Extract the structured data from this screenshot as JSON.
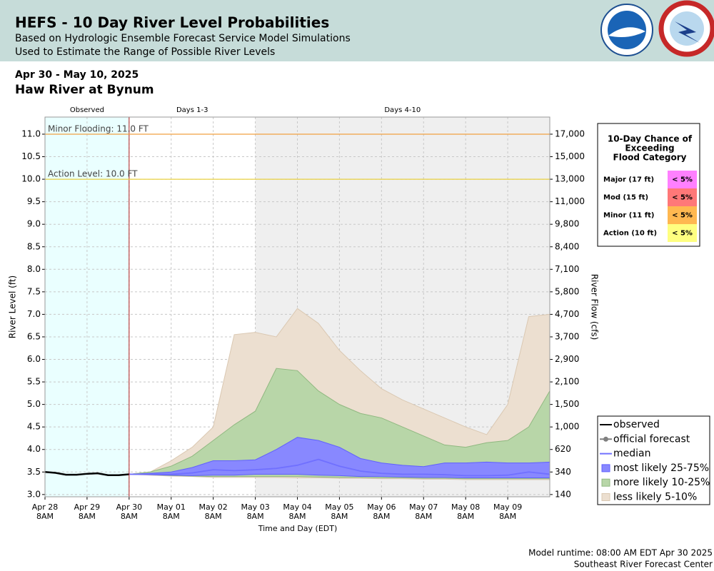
{
  "header": {
    "title": "HEFS - 10 Day River Level Probabilities",
    "subtitles": [
      "Based on Hydrologic Ensemble Forecast Service Model Simulations",
      "Used to Estimate the Range of Possible River Levels"
    ]
  },
  "date_range": "Apr 30 - May 10, 2025",
  "location": "Haw River at Bynum",
  "chart_data": {
    "type": "band",
    "xlabel": "Time and Day (EDT)",
    "ylabel": "River Level (ft)",
    "y2label": "River Flow (cfs)",
    "xlim": [
      "Apr 28 08:00",
      "May 10 08:00"
    ],
    "ylim": [
      2.95,
      11.38
    ],
    "xticks": [
      {
        "value": "Apr 28 08:00",
        "label": [
          "Apr 28",
          "8AM"
        ]
      },
      {
        "value": "Apr 29 08:00",
        "label": [
          "Apr 29",
          "8AM"
        ]
      },
      {
        "value": "Apr 30 08:00",
        "label": [
          "Apr 30",
          "8AM"
        ]
      },
      {
        "value": "May 01 08:00",
        "label": [
          "May 01",
          "8AM"
        ]
      },
      {
        "value": "May 02 08:00",
        "label": [
          "May 02",
          "8AM"
        ]
      },
      {
        "value": "May 03 08:00",
        "label": [
          "May 03",
          "8AM"
        ]
      },
      {
        "value": "May 04 08:00",
        "label": [
          "May 04",
          "8AM"
        ]
      },
      {
        "value": "May 05 08:00",
        "label": [
          "May 05",
          "8AM"
        ]
      },
      {
        "value": "May 06 08:00",
        "label": [
          "May 06",
          "8AM"
        ]
      },
      {
        "value": "May 07 08:00",
        "label": [
          "May 07",
          "8AM"
        ]
      },
      {
        "value": "May 08 08:00",
        "label": [
          "May 08",
          "8AM"
        ]
      },
      {
        "value": "May 09 08:00",
        "label": [
          "May 09",
          "8AM"
        ]
      }
    ],
    "yticks": [
      {
        "value": 3,
        "label": "3.0"
      },
      3.5,
      {
        "value": 4,
        "label": "4.0"
      },
      4.5,
      {
        "value": 5,
        "label": "5.0"
      },
      5.5,
      {
        "value": 6,
        "label": "6.0"
      },
      6.5,
      {
        "value": 7,
        "label": "7.0"
      },
      7.5,
      {
        "value": 8,
        "label": "8.0"
      },
      8.5,
      {
        "value": 9,
        "label": "9.0"
      },
      9.5,
      {
        "value": 10,
        "label": "10.0"
      },
      10.5,
      {
        "value": 11,
        "label": "11.0"
      }
    ],
    "y2ticks": [
      140,
      340,
      620,
      {
        "value": 1000,
        "label": "1,000"
      },
      {
        "value": 1500,
        "label": "1,500"
      },
      {
        "value": 2100,
        "label": "2,100"
      },
      {
        "value": 2900,
        "label": "2,900"
      },
      {
        "value": 3700,
        "label": "3,700"
      },
      {
        "value": 4700,
        "label": "4,700"
      },
      {
        "value": 5800,
        "label": "5,800"
      },
      {
        "value": 7100,
        "label": "7,100"
      },
      {
        "value": 8400,
        "label": "8,400"
      },
      {
        "value": 9800,
        "label": "9,800"
      },
      {
        "value": 11000,
        "label": "11,000"
      },
      {
        "value": 13000,
        "label": "13,000"
      },
      {
        "value": 15000,
        "label": "15,000"
      },
      {
        "value": 17000,
        "label": "17,000"
      }
    ],
    "grid": true,
    "regions": [
      {
        "label": "Observed",
        "start": "Apr 28 08:00",
        "end": "Apr 30 08:00",
        "color": "#eaffff"
      },
      {
        "label": "Days 1-3",
        "start": "Apr 30 08:00",
        "end": "May 03 08:00",
        "color": "#ffffff"
      },
      {
        "label": "Days 4-10",
        "start": "May 03 08:00",
        "end": "May 10 08:00",
        "color": "#efefef"
      }
    ],
    "now": {
      "x": "Apr 30 08:00",
      "color": "#b02020"
    },
    "thresholds": [
      {
        "label": "Minor Flooding: 11.0 FT",
        "value": 11,
        "color": "#f0a040"
      },
      {
        "label": "Action Level: 10.0 FT",
        "value": 10,
        "color": "#e8d040"
      }
    ],
    "forecast_x": [
      "Apr 30 08:00",
      "Apr 30 20:00",
      "May 01 08:00",
      "May 01 20:00",
      "May 02 08:00",
      "May 02 20:00",
      "May 03 08:00",
      "May 03 20:00",
      "May 04 08:00",
      "May 04 20:00",
      "May 05 08:00",
      "May 05 20:00",
      "May 06 08:00",
      "May 06 20:00",
      "May 07 08:00",
      "May 07 20:00",
      "May 08 08:00",
      "May 08 20:00",
      "May 09 08:00",
      "May 09 20:00",
      "May 10 08:00"
    ],
    "series": [
      {
        "name": "observed",
        "kind": "line",
        "color": "#000000",
        "x": [
          "Apr 28 08:00",
          "Apr 28 14:00",
          "Apr 28 20:00",
          "Apr 29 02:00",
          "Apr 29 08:00",
          "Apr 29 14:00",
          "Apr 29 20:00",
          "Apr 30 02:00",
          "Apr 30 08:00"
        ],
        "values": [
          3.5,
          3.48,
          3.44,
          3.44,
          3.46,
          3.47,
          3.43,
          3.43,
          3.45
        ]
      },
      {
        "name": "official forecast",
        "kind": "dotline",
        "color": "#808080"
      },
      {
        "name": "median",
        "kind": "line",
        "color": "#7070ff",
        "values": [
          3.45,
          3.45,
          3.45,
          3.48,
          3.55,
          3.53,
          3.55,
          3.58,
          3.65,
          3.78,
          3.63,
          3.52,
          3.47,
          3.45,
          3.45,
          3.44,
          3.42,
          3.42,
          3.43,
          3.5,
          3.45
        ]
      },
      {
        "name": "most likely 25-75%",
        "kind": "band",
        "color": "#8888ff",
        "edge": "#6060ff",
        "upper": [
          3.45,
          3.47,
          3.5,
          3.6,
          3.75,
          3.75,
          3.77,
          4.0,
          4.27,
          4.2,
          4.05,
          3.8,
          3.7,
          3.65,
          3.62,
          3.7,
          3.7,
          3.72,
          3.7,
          3.7,
          3.72
        ],
        "lower": [
          3.45,
          3.44,
          3.43,
          3.42,
          3.43,
          3.43,
          3.45,
          3.45,
          3.45,
          3.43,
          3.42,
          3.4,
          3.4,
          3.39,
          3.38,
          3.38,
          3.37,
          3.37,
          3.37,
          3.37,
          3.37
        ]
      },
      {
        "name": "more likely 10-25%",
        "kind": "band",
        "color": "#b8d6a8",
        "edge": "#90b880",
        "upper": [
          3.45,
          3.5,
          3.63,
          3.85,
          4.2,
          4.55,
          4.85,
          5.8,
          5.75,
          5.3,
          5.0,
          4.8,
          4.7,
          4.5,
          4.3,
          4.1,
          4.05,
          4.15,
          4.2,
          4.5,
          5.3
        ],
        "lower": [
          3.45,
          3.44,
          3.42,
          3.41,
          3.4,
          3.4,
          3.4,
          3.4,
          3.4,
          3.39,
          3.38,
          3.38,
          3.37,
          3.37,
          3.36,
          3.36,
          3.35,
          3.35,
          3.35,
          3.35,
          3.35
        ]
      },
      {
        "name": "less likely 5-10%",
        "kind": "band",
        "color": "#ecdfd0",
        "edge": "#dac8b2",
        "upper": [
          3.45,
          3.5,
          3.75,
          4.05,
          4.5,
          6.55,
          6.6,
          6.5,
          7.13,
          6.8,
          6.2,
          5.75,
          5.35,
          5.1,
          4.9,
          4.7,
          4.5,
          4.33,
          5.0,
          6.95,
          7.0
        ],
        "lower": [
          3.45,
          3.43,
          3.41,
          3.4,
          3.38,
          3.38,
          3.38,
          3.38,
          3.37,
          3.37,
          3.36,
          3.36,
          3.35,
          3.35,
          3.34,
          3.34,
          3.33,
          3.33,
          3.33,
          3.33,
          3.33
        ]
      }
    ]
  },
  "flood_table": {
    "title": [
      "10-Day Chance of",
      "Exceeding",
      "Flood Category"
    ],
    "rows": [
      {
        "label": "Major (17 ft)",
        "value": "< 5%",
        "color": "#ff80ff"
      },
      {
        "label": "Mod (15 ft)",
        "value": "< 5%",
        "color": "#ff7878"
      },
      {
        "label": "Minor (11 ft)",
        "value": "< 5%",
        "color": "#ffb850"
      },
      {
        "label": "Action (10 ft)",
        "value": "< 5%",
        "color": "#ffff80"
      }
    ]
  },
  "footer": [
    "Model runtime: 08:00 AM EDT Apr 30 2025",
    "Southeast River Forecast Center"
  ]
}
